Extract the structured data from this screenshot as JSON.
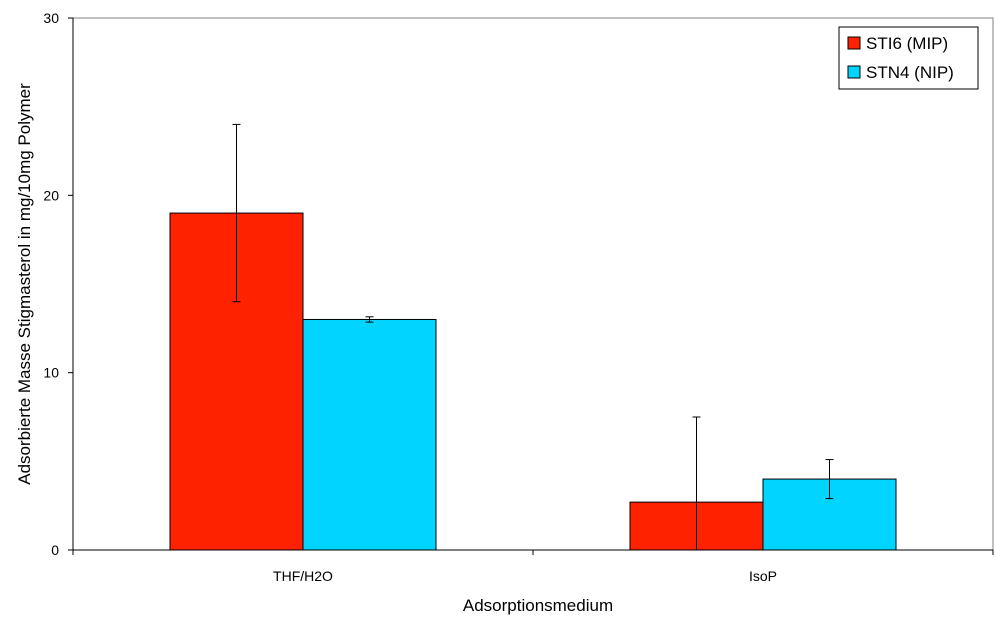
{
  "chart_data": {
    "type": "bar",
    "categories": [
      "THF/H2O",
      "IsoP"
    ],
    "series": [
      {
        "name": "STI6 (MIP)",
        "values": [
          19,
          2.7
        ],
        "errors": [
          5,
          4.8
        ],
        "color": "#ff2200"
      },
      {
        "name": "STN4 (NIP)",
        "values": [
          13,
          4.0
        ],
        "errors": [
          0.15,
          1.1
        ],
        "color": "#00d4ff"
      }
    ],
    "title": "",
    "xlabel": "Adsorptionsmedium",
    "ylabel": "Adsorbierte Masse Stigmasterol in mg/10mg Polymer",
    "ylim": [
      0,
      30
    ],
    "yticks": [
      0,
      10,
      20,
      30
    ],
    "grid": false,
    "legend_position": "top-right"
  }
}
